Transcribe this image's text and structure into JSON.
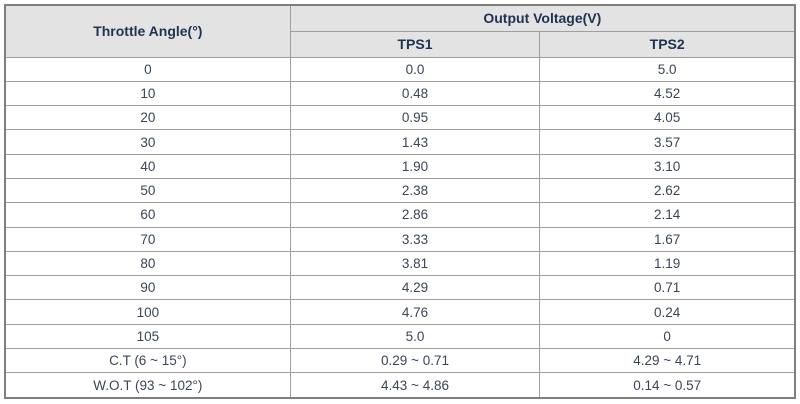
{
  "table": {
    "title_semantic": "Throttle position sensor output voltage table",
    "col1_header": "Throttle Angle(°)",
    "group_header": "Output Voltage(V)",
    "sub_headers": [
      "TPS1",
      "TPS2"
    ],
    "rows": [
      {
        "angle": "0",
        "tps1": "0.0",
        "tps2": "5.0"
      },
      {
        "angle": "10",
        "tps1": "0.48",
        "tps2": "4.52"
      },
      {
        "angle": "20",
        "tps1": "0.95",
        "tps2": "4.05"
      },
      {
        "angle": "30",
        "tps1": "1.43",
        "tps2": "3.57"
      },
      {
        "angle": "40",
        "tps1": "1.90",
        "tps2": "3.10"
      },
      {
        "angle": "50",
        "tps1": "2.38",
        "tps2": "2.62"
      },
      {
        "angle": "60",
        "tps1": "2.86",
        "tps2": "2.14"
      },
      {
        "angle": "70",
        "tps1": "3.33",
        "tps2": "1.67"
      },
      {
        "angle": "80",
        "tps1": "3.81",
        "tps2": "1.19"
      },
      {
        "angle": "90",
        "tps1": "4.29",
        "tps2": "0.71"
      },
      {
        "angle": "100",
        "tps1": "4.76",
        "tps2": "0.24"
      },
      {
        "angle": "105",
        "tps1": "5.0",
        "tps2": "0"
      },
      {
        "angle": "C.T (6 ~ 15°)",
        "tps1": "0.29 ~ 0.71",
        "tps2": "4.29 ~ 4.71"
      },
      {
        "angle": "W.O.T (93 ~ 102°)",
        "tps1": "4.43 ~ 4.86",
        "tps2": "0.14 ~ 0.57"
      }
    ]
  },
  "colors": {
    "header_background": "#e3e3e3",
    "header_text": "#1f3250",
    "body_text": "#3a4557",
    "grid_border": "#9e9e9e",
    "outer_border": "#7f7f7f",
    "page_background": "#ffffff"
  },
  "chart_data": {
    "type": "table",
    "title": "Output Voltage(V) by Throttle Angle(°)",
    "columns": [
      "Throttle Angle(°)",
      "TPS1",
      "TPS2"
    ],
    "x": [
      0,
      10,
      20,
      30,
      40,
      50,
      60,
      70,
      80,
      90,
      100,
      105
    ],
    "series": [
      {
        "name": "TPS1",
        "values": [
          0.0,
          0.48,
          0.95,
          1.43,
          1.9,
          2.38,
          2.86,
          3.33,
          3.81,
          4.29,
          4.76,
          5.0
        ]
      },
      {
        "name": "TPS2",
        "values": [
          5.0,
          4.52,
          4.05,
          3.57,
          3.1,
          2.62,
          2.14,
          1.67,
          1.19,
          0.71,
          0.24,
          0
        ]
      }
    ],
    "special_rows": [
      {
        "label": "C.T (6 ~ 15°)",
        "TPS1": "0.29 ~ 0.71",
        "TPS2": "4.29 ~ 4.71"
      },
      {
        "label": "W.O.T (93 ~ 102°)",
        "TPS1": "4.43 ~ 4.86",
        "TPS2": "0.14 ~ 0.57"
      }
    ],
    "units": {
      "angle": "degrees",
      "voltage": "V"
    }
  }
}
